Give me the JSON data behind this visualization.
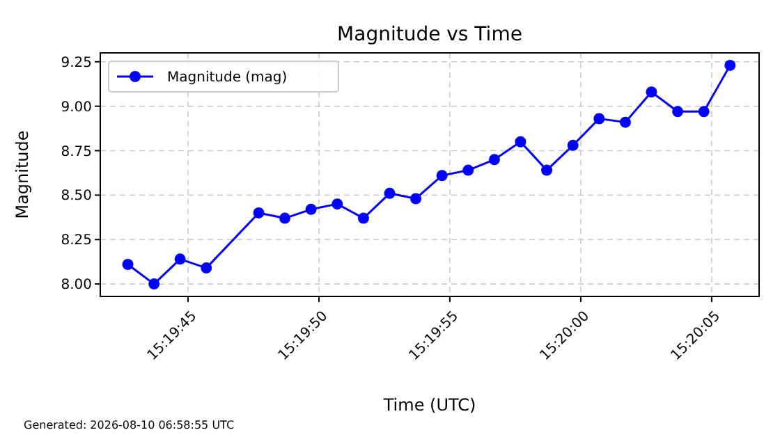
{
  "chart_data": {
    "type": "line",
    "title": "Magnitude vs Time",
    "xlabel": "Time (UTC)",
    "ylabel": "Magnitude",
    "x": [
      15.328528,
      15.328806,
      15.329083,
      15.329361,
      15.329917,
      15.330194,
      15.330472,
      15.33075,
      15.331028,
      15.331306,
      15.331583,
      15.331861,
      15.332139,
      15.332417,
      15.332694,
      15.332972,
      15.33325,
      15.333528,
      15.333806,
      15.334083,
      15.334361,
      15.334639,
      15.334917
    ],
    "series": [
      {
        "name": "Magnitude (mag)",
        "color": "#0000ff",
        "values": [
          8.11,
          8.0,
          8.14,
          8.09,
          8.4,
          8.37,
          8.42,
          8.45,
          8.37,
          8.51,
          8.48,
          8.61,
          8.64,
          8.7,
          8.8,
          8.64,
          8.78,
          8.93,
          8.91,
          9.08,
          8.97,
          8.97,
          9.23
        ]
      }
    ],
    "xlim": [
      15.328236,
      15.335225
    ],
    "xticks": [
      {
        "value": 15.329167,
        "label": "15:19:45"
      },
      {
        "value": 15.330556,
        "label": "15:19:50"
      },
      {
        "value": 15.331944,
        "label": "15:19:55"
      },
      {
        "value": 15.333333,
        "label": "15:20:00"
      },
      {
        "value": 15.334722,
        "label": "15:20:05"
      }
    ],
    "ylim": [
      7.93,
      9.3
    ],
    "yticks": [
      {
        "value": 8,
        "label": "8.00"
      },
      {
        "value": 8.25,
        "label": "8.25"
      },
      {
        "value": 8.5,
        "label": "8.50"
      },
      {
        "value": 8.75,
        "label": "8.75"
      },
      {
        "value": 9,
        "label": "9.00"
      },
      {
        "value": 9.25,
        "label": "9.25"
      }
    ],
    "grid": true,
    "legend": "top left",
    "marker": "circle",
    "line_style": "solid",
    "annotations": [
      "Generated: 2026-08-10 06:58:55 UTC"
    ]
  }
}
